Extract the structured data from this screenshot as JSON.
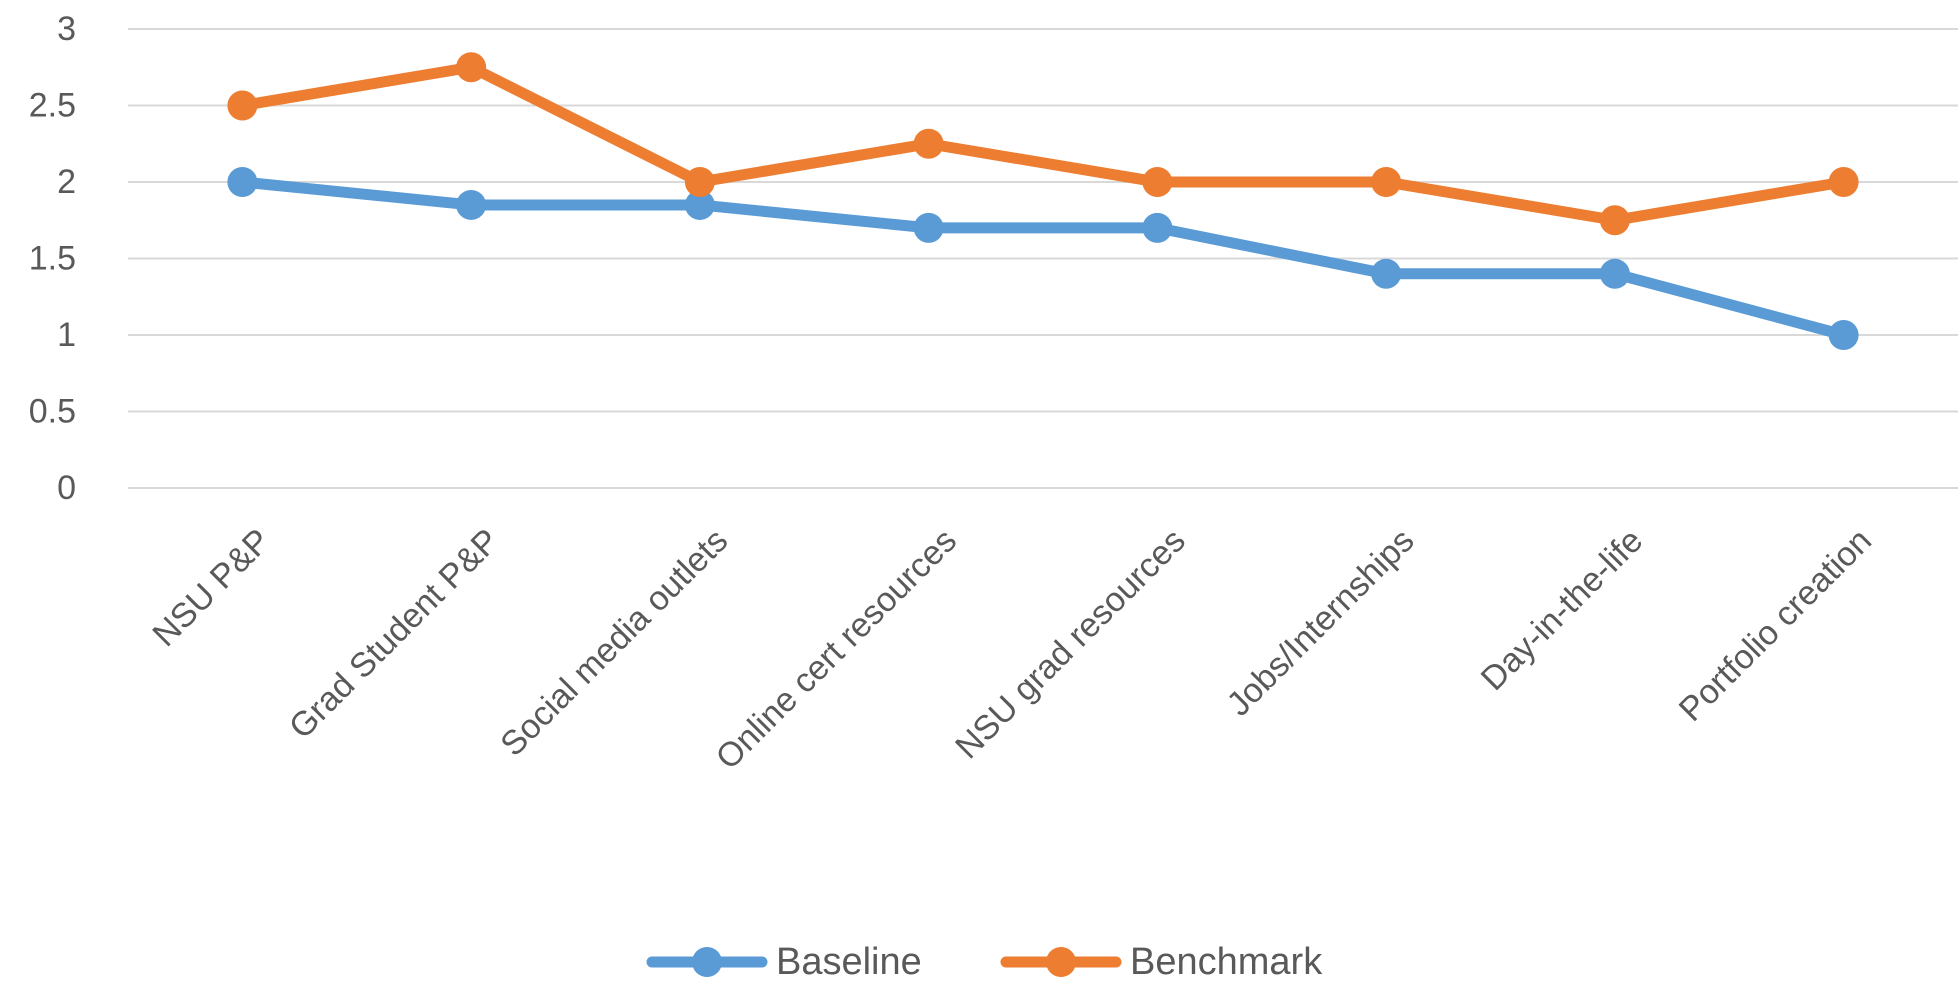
{
  "chart_data": {
    "type": "line",
    "title": "",
    "xlabel": "",
    "ylabel": "",
    "ylim": [
      0,
      3
    ],
    "yticks": [
      0,
      0.5,
      1,
      1.5,
      2,
      2.5,
      3
    ],
    "ytick_labels": [
      "0",
      "0.5",
      "1",
      "1.5",
      "2",
      "2.5",
      "3"
    ],
    "grid": true,
    "legend_position": "bottom",
    "categories": [
      "NSU P&P",
      "Grad Student P&P",
      "Social media outlets",
      "Online cert resources",
      "NSU grad resources",
      "Jobs/Internships",
      "Day-in-the-life",
      "Portfolio creation"
    ],
    "series": [
      {
        "name": "Baseline",
        "color": "#5b9bd5",
        "marker": "circle",
        "values": [
          2,
          1.85,
          1.85,
          1.7,
          1.7,
          1.4,
          1.4,
          1
        ]
      },
      {
        "name": "Benchmark",
        "color": "#ed7d31",
        "marker": "circle",
        "values": [
          2.5,
          2.75,
          2,
          2.25,
          2,
          2,
          1.75,
          2
        ]
      }
    ]
  }
}
